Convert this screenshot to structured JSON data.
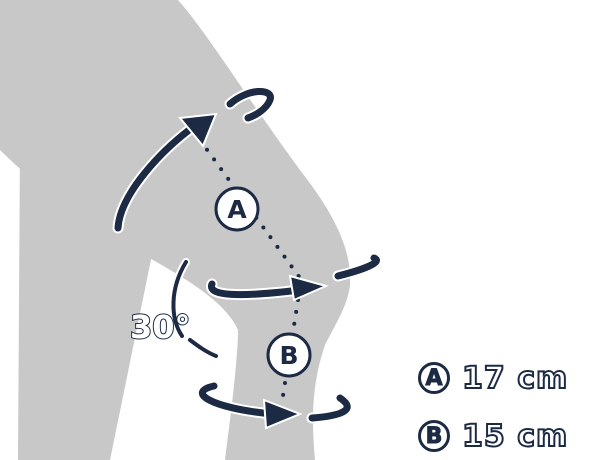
{
  "diagram": {
    "angle_label": "30°",
    "marker_a": "A",
    "marker_b": "B"
  },
  "legend": [
    {
      "marker": "A",
      "value": "17 cm"
    },
    {
      "marker": "B",
      "value": "15 cm"
    }
  ],
  "colors": {
    "leg": "#c8c8c8",
    "ink": "#1c2a44",
    "background": "#ffffff"
  },
  "icons": [
    "curved-arrow-icon"
  ]
}
